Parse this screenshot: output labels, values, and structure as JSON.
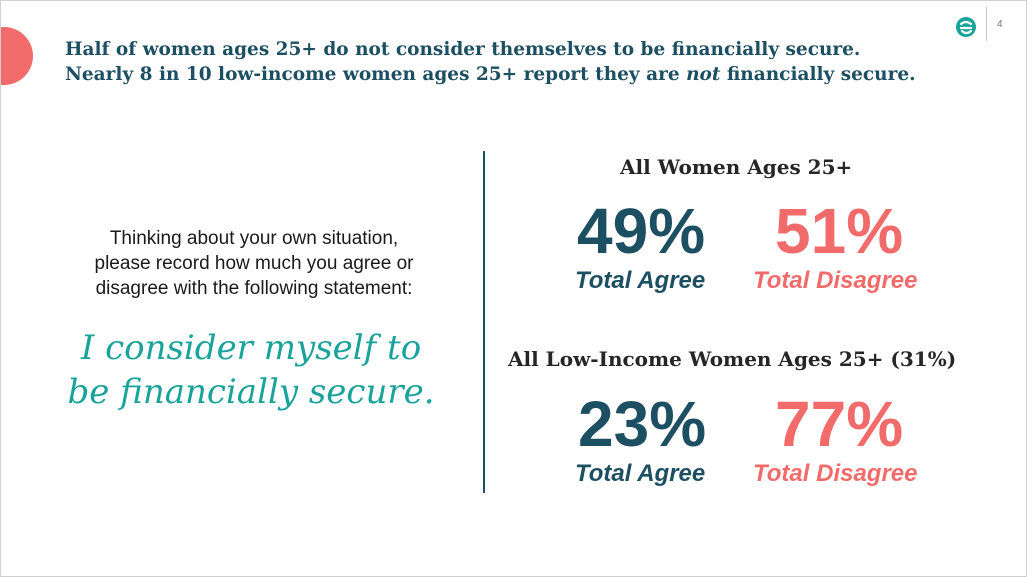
{
  "header": {
    "headline_line1": "Half of women ages 25+ do not consider themselves to be financially secure.",
    "headline_line2_pre": "Nearly 8 in 10 low-income women ages 25+ report they are ",
    "headline_line2_emph": "not",
    "headline_line2_post": " financially secure.",
    "page_number": "4",
    "logo_icon": "brand-logo-icon"
  },
  "question": {
    "line1": "Thinking about your own situation,",
    "line2": "please record how much you agree or",
    "line3": "disagree with the following statement:"
  },
  "statement": {
    "line1": "I consider myself to",
    "line2": "be financially secure."
  },
  "results": [
    {
      "title": "All Women Ages 25+",
      "agree_value": "49%",
      "agree_label": "Total Agree",
      "disagree_value": "51%",
      "disagree_label": "Total Disagree"
    },
    {
      "title": "All Low-Income Women Ages 25+ (31%)",
      "agree_value": "23%",
      "agree_label": "Total Agree",
      "disagree_value": "77%",
      "disagree_label": "Total Disagree"
    }
  ],
  "colors": {
    "navy": "#1d4f63",
    "coral": "#f26b6b",
    "teal": "#1aa39a",
    "logo": "#1aa39a"
  }
}
